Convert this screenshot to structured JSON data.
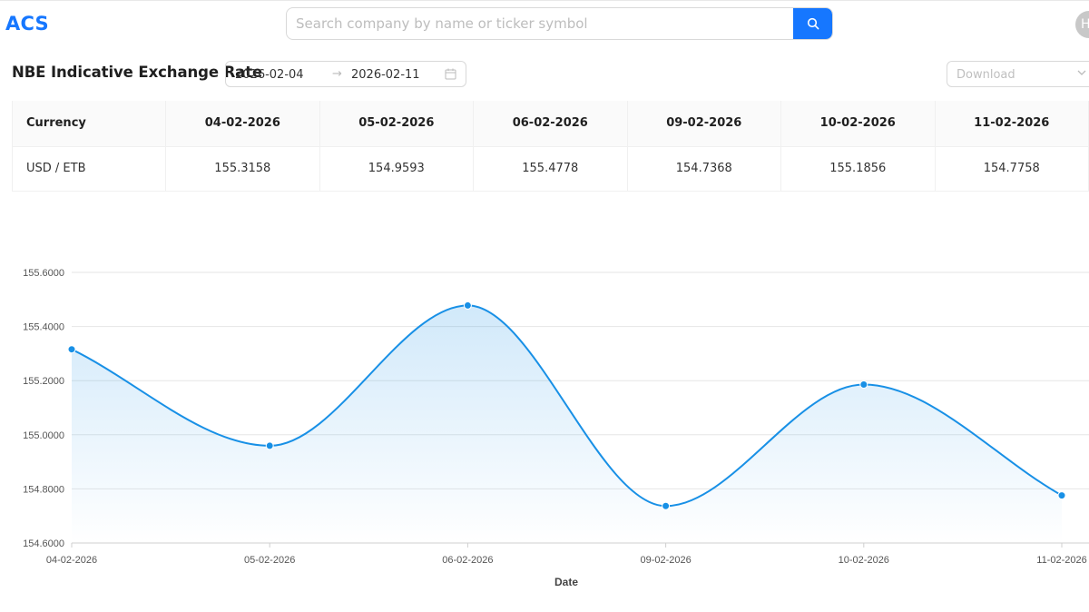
{
  "header": {
    "logo": "ACS",
    "search_placeholder": "Search company by name or ticker symbol",
    "avatar_initial": "H"
  },
  "toolbar": {
    "title": "NBE Indicative Exchange Rate",
    "date_from": "2026-02-04",
    "date_to": "2026-02-11",
    "date_separator": "→",
    "download_placeholder": "Download"
  },
  "table": {
    "columns": [
      "Currency",
      "04-02-2026",
      "05-02-2026",
      "06-02-2026",
      "09-02-2026",
      "10-02-2026",
      "11-02-2026"
    ],
    "rows": [
      [
        "USD / ETB",
        "155.3158",
        "154.9593",
        "155.4778",
        "154.7368",
        "155.1856",
        "154.7758"
      ]
    ]
  },
  "chart_data": {
    "type": "area",
    "x": [
      "04-02-2026",
      "05-02-2026",
      "06-02-2026",
      "09-02-2026",
      "10-02-2026",
      "11-02-2026"
    ],
    "series": [
      {
        "values": [
          155.3158,
          154.9593,
          155.4778,
          154.7368,
          155.1856,
          154.7758
        ]
      }
    ],
    "xlabel": "Date",
    "ylabel": "",
    "ylim": [
      154.6,
      155.6
    ],
    "yticks": [
      "155.6000",
      "155.4000",
      "155.2000",
      "155.0000",
      "154.8000",
      "154.6000"
    ],
    "ytick_values": [
      155.6,
      155.4,
      155.2,
      155.0,
      154.8,
      154.6
    ],
    "grid": true,
    "color": "#1890e6"
  }
}
